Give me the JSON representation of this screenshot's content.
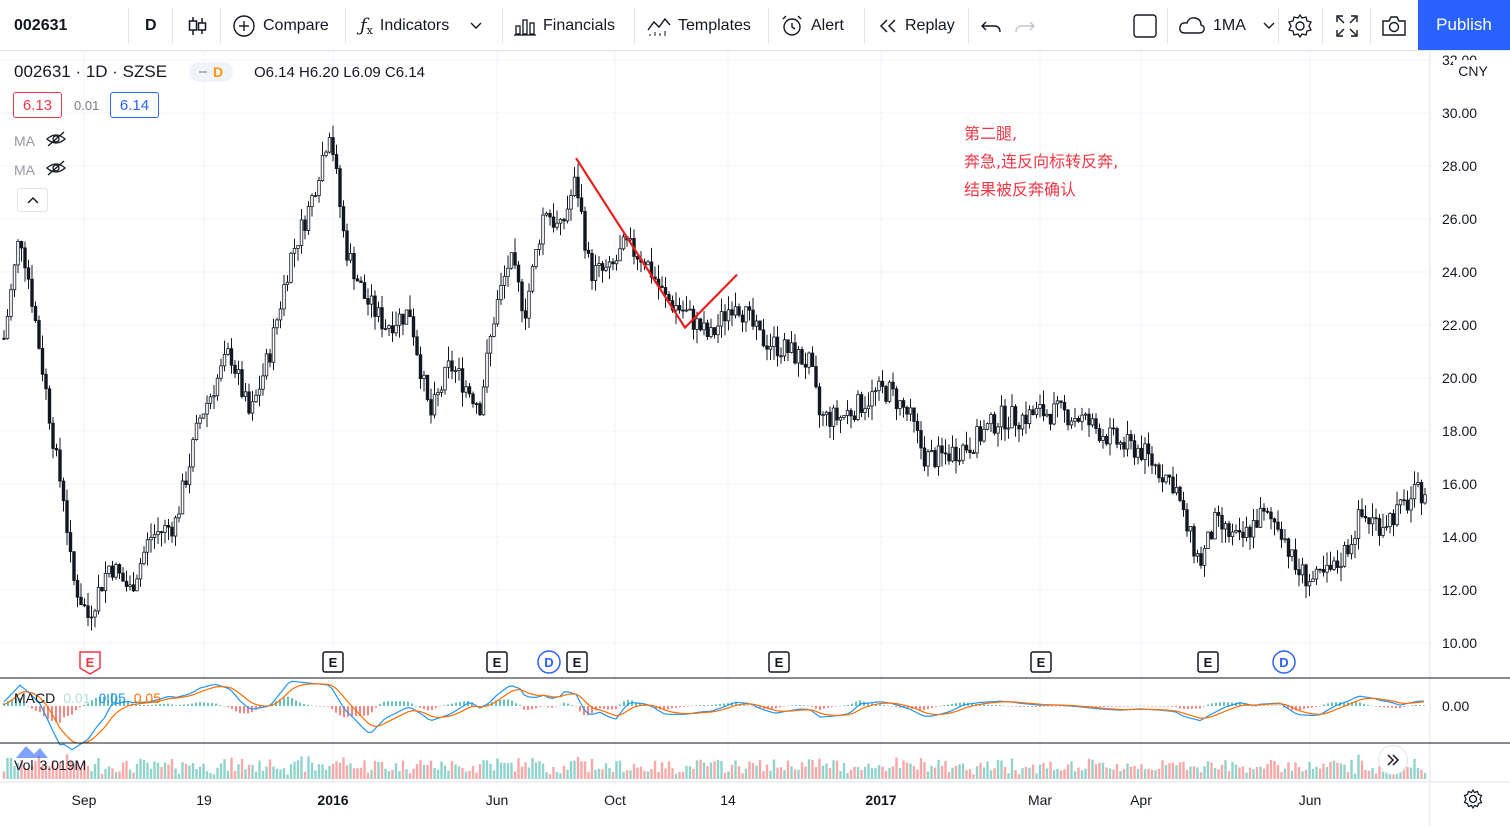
{
  "toolbar": {
    "symbol": "002631",
    "interval": "D",
    "compare_label": "Compare",
    "indicators_label": "Indicators",
    "financials_label": "Financials",
    "templates_label": "Templates",
    "alert_label": "Alert",
    "replay_label": "Replay",
    "range_label": "1MA",
    "publish_label": "Publish"
  },
  "legend": {
    "title": "002631 · 1D · SZSE",
    "badge": "D",
    "ohlc": "O6.14 H6.20 L6.09 C6.14",
    "bid": "6.13",
    "spread": "0.01",
    "ask": "6.14",
    "ma1": "MA",
    "ma2": "MA",
    "currency": "CNY"
  },
  "annotation": {
    "line1": "第二腿,",
    "line2": "奔急,连反向标转反奔,",
    "line3": "结果被反奔确认"
  },
  "macd": {
    "label": "MACD",
    "v1": "0.01",
    "v2": "0.05",
    "v3": "0.05",
    "zero": "0.00"
  },
  "volume": {
    "label": "Vol",
    "value": "3.019M"
  },
  "colors": {
    "up": "#26a69a",
    "down": "#ef5350",
    "candle": "#131722",
    "accent": "#2962ff",
    "annot": "#f23645"
  },
  "chart_data": {
    "type": "candlestick",
    "y_ticks": [
      "32.00",
      "30.00",
      "28.00",
      "26.00",
      "24.00",
      "22.00",
      "20.00",
      "18.00",
      "16.00",
      "14.00",
      "12.00",
      "10.00"
    ],
    "x_ticks": [
      "Sep",
      "19",
      "2016",
      "Jun",
      "Oct",
      "14",
      "2017",
      "Mar",
      "Apr",
      "Jun"
    ],
    "ylim": [
      9.0,
      32.5
    ],
    "price_path": [
      [
        0,
        20.5
      ],
      [
        8,
        22.5
      ],
      [
        20,
        25.5
      ],
      [
        30,
        23.5
      ],
      [
        50,
        18.5
      ],
      [
        58,
        16.5
      ],
      [
        64,
        15.5
      ],
      [
        72,
        12.5
      ],
      [
        88,
        11.0
      ],
      [
        110,
        13.0
      ],
      [
        130,
        12.0
      ],
      [
        150,
        14.0
      ],
      [
        175,
        14.5
      ],
      [
        200,
        18.5
      ],
      [
        230,
        21.0
      ],
      [
        250,
        18.5
      ],
      [
        270,
        21.0
      ],
      [
        290,
        24.5
      ],
      [
        310,
        26.5
      ],
      [
        330,
        29.5
      ],
      [
        345,
        25.0
      ],
      [
        365,
        23.0
      ],
      [
        385,
        22.0
      ],
      [
        410,
        22.5
      ],
      [
        430,
        18.5
      ],
      [
        450,
        20.5
      ],
      [
        480,
        19.0
      ],
      [
        495,
        22.5
      ],
      [
        510,
        24.5
      ],
      [
        525,
        22.5
      ],
      [
        545,
        26.5
      ],
      [
        560,
        25.5
      ],
      [
        576,
        27.5
      ],
      [
        590,
        24.0
      ],
      [
        610,
        24.0
      ],
      [
        625,
        25.0
      ],
      [
        645,
        24.5
      ],
      [
        665,
        23.0
      ],
      [
        685,
        22.5
      ],
      [
        710,
        21.5
      ],
      [
        735,
        23.0
      ],
      [
        760,
        21.5
      ],
      [
        790,
        21.0
      ],
      [
        810,
        20.5
      ],
      [
        820,
        18.5
      ],
      [
        840,
        18.5
      ],
      [
        860,
        19.0
      ],
      [
        880,
        19.5
      ],
      [
        890,
        19.5
      ],
      [
        910,
        18.5
      ],
      [
        925,
        17.0
      ],
      [
        940,
        17.0
      ],
      [
        970,
        17.5
      ],
      [
        1000,
        18.5
      ],
      [
        1020,
        18.5
      ],
      [
        1040,
        18.7
      ],
      [
        1060,
        18.7
      ],
      [
        1080,
        18.5
      ],
      [
        1100,
        18.0
      ],
      [
        1120,
        17.5
      ],
      [
        1140,
        17.3
      ],
      [
        1160,
        16.5
      ],
      [
        1175,
        16.0
      ],
      [
        1185,
        14.5
      ],
      [
        1200,
        13.0
      ],
      [
        1215,
        14.5
      ],
      [
        1240,
        13.8
      ],
      [
        1260,
        14.8
      ],
      [
        1280,
        14.5
      ],
      [
        1295,
        12.8
      ],
      [
        1315,
        12.3
      ],
      [
        1335,
        12.8
      ],
      [
        1350,
        13.8
      ],
      [
        1360,
        14.8
      ],
      [
        1380,
        14.5
      ],
      [
        1400,
        15.0
      ],
      [
        1415,
        15.6
      ],
      [
        1428,
        15.8
      ]
    ],
    "drawing": {
      "type": "polyline",
      "points": [
        [
          576,
          28.3
        ],
        [
          685,
          21.9
        ],
        [
          737,
          23.9
        ]
      ]
    },
    "events": [
      {
        "label": "E",
        "color": "red",
        "x": 90
      },
      {
        "label": "E",
        "color": "dark",
        "x": 333
      },
      {
        "label": "E",
        "color": "dark",
        "x": 497
      },
      {
        "label": "D",
        "color": "blue",
        "x": 549
      },
      {
        "label": "E",
        "color": "dark",
        "x": 577
      },
      {
        "label": "E",
        "color": "dark",
        "x": 779
      },
      {
        "label": "E",
        "color": "dark",
        "x": 1041
      },
      {
        "label": "E",
        "color": "dark",
        "x": 1208
      },
      {
        "label": "D",
        "color": "blue",
        "x": 1284
      }
    ]
  }
}
